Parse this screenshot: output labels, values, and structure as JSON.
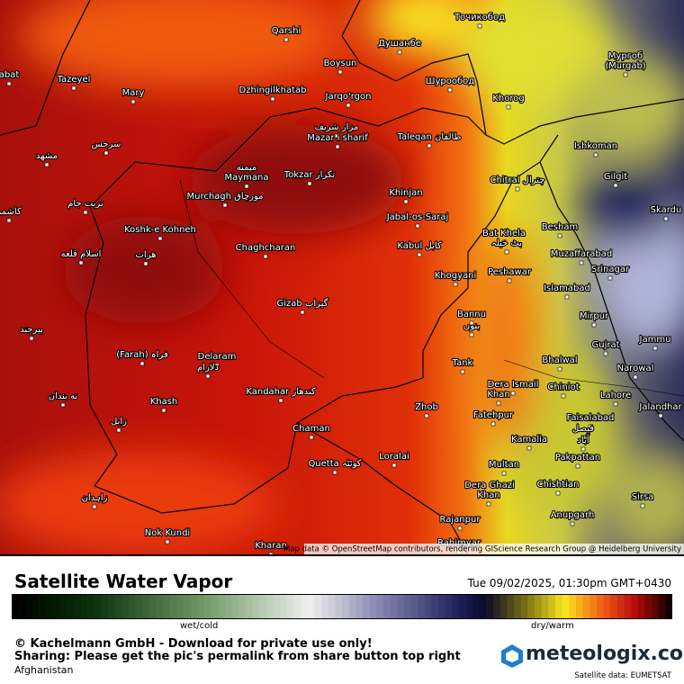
{
  "map": {
    "attribution": "Map data © OpenStreetMap contributors, rendering GIScience Research Group @ Heidelberg University",
    "places": [
      "abat",
      "Tazeyel",
      "Mary",
      "Dzhingilkhatab",
      "Qarshi",
      "Boysun",
      "Душанбе",
      "Точикобод",
      "Шурообод",
      "Jarqo'rgon",
      "Мургоб",
      "(Murgab)",
      "Khorog",
      "Ishkoman",
      "Gilgit",
      "Skardu",
      "Chitral چترال",
      "Besham",
      "Muzaffarabad",
      "Srinagar",
      "Islamabad",
      "Peshawar",
      "Bat Khela",
      "بٹ خیلہ",
      "Kabul کابل",
      "Khogyani",
      "Jabal-os-Saraj",
      "Khinjan",
      "Taleqan طالقان",
      "مزار شریف",
      "Mazar i sharif",
      "Tokzar تکزار",
      "میمنه",
      "Maymana",
      "Murchagh مورچاق",
      "Koshk-e Kohneh",
      "Chaghcharan",
      "هرات",
      "اسلام قلعه",
      "مشهد",
      "سرخس",
      "Gizab گیزاب",
      "Bannu",
      "بنوں",
      "Tank",
      "Mirpur",
      "Gujrat",
      "Jammu",
      "Bhalwal",
      "Narowal",
      "Chiniot",
      "Lahore",
      "Jalandhar",
      "Dera Ismail",
      "Khan",
      "Fatehpur",
      "Faisalabad",
      "فیصل",
      "آباد",
      "Kamalia",
      "Multan",
      "Pakpattan",
      "Dera Ghazi",
      "Khan",
      "Chishtian",
      "Sirsa",
      "Anupgarh",
      "Rajanpur",
      "Rahimyar",
      "Zhob",
      "Loralai",
      "Quetta کوئٹہ",
      "Chaman",
      "Kandahar کندھار",
      "Khash",
      "Delaram",
      "دلارام",
      "(Farah) فراہ",
      "Nok Kundi",
      "Kharan",
      "زاہدان",
      "زابل",
      "نه بندان",
      "بیرجند",
      "تربت جام",
      "کاشمر",
      "Qarshi"
    ]
  },
  "footer": {
    "title": "Satellite Water Vapor",
    "datetime": "Tue 09/02/2025, 01:30pm GMT+0430",
    "scale_left": "wet/cold",
    "scale_right": "dry/warm",
    "copyright": "© Kachelmann GmbH - Download for private use only!",
    "sharing": "Sharing: Please get the pic's permalink from share button top right",
    "region": "Afghanistan",
    "brand": "meteologix.com",
    "source": "Satellite data: EUMETSAT"
  }
}
